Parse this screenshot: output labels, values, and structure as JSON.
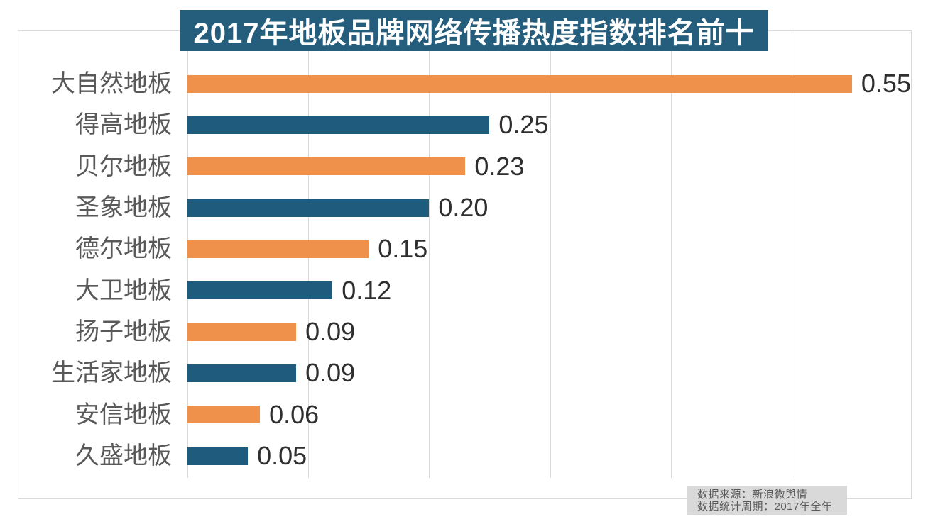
{
  "title": "2017年地板品牌网络传播热度指数排名前十",
  "source_note": {
    "line1": "数据来源：新浪微舆情",
    "line2": "数据统计周期：2017年全年"
  },
  "colors": {
    "background": "#FFFFFF",
    "banner_bg": "#255E7D",
    "banner_text": "#FFFFFF",
    "bar_orange": "#F0914B",
    "bar_blue": "#1F5B7C",
    "grid_line": "#D9D9D9",
    "frame_border": "#D9D9D9",
    "category_label": "#595959",
    "value_label": "#2F2F2F",
    "note_bg": "#D9D9D9",
    "note_text": "#595959"
  },
  "chart_data": {
    "type": "bar",
    "orientation": "horizontal",
    "title": "2017年地板品牌网络传播热度指数排名前十",
    "categories": [
      "大自然地板",
      "得高地板",
      "贝尔地板",
      "圣象地板",
      "德尔地板",
      "大卫地板",
      "扬子地板",
      "生活家地板",
      "安信地板",
      "久盛地板"
    ],
    "values": [
      0.55,
      0.25,
      0.23,
      0.2,
      0.15,
      0.12,
      0.09,
      0.09,
      0.06,
      0.05
    ],
    "value_labels": [
      "0.55",
      "0.25",
      "0.23",
      "0.20",
      "0.15",
      "0.12",
      "0.09",
      "0.09",
      "0.06",
      "0.05"
    ],
    "xlabel": "",
    "ylabel": "",
    "xlim": [
      0,
      0.6
    ],
    "grid_interval": 0.1,
    "grid": true,
    "legend": false,
    "bar_colors_alternating": [
      "#F0914B",
      "#1F5B7C"
    ],
    "value_label_position": "outside-end",
    "source_line1": "数据来源：新浪微舆情",
    "source_line2": "数据统计周期：2017年全年"
  }
}
